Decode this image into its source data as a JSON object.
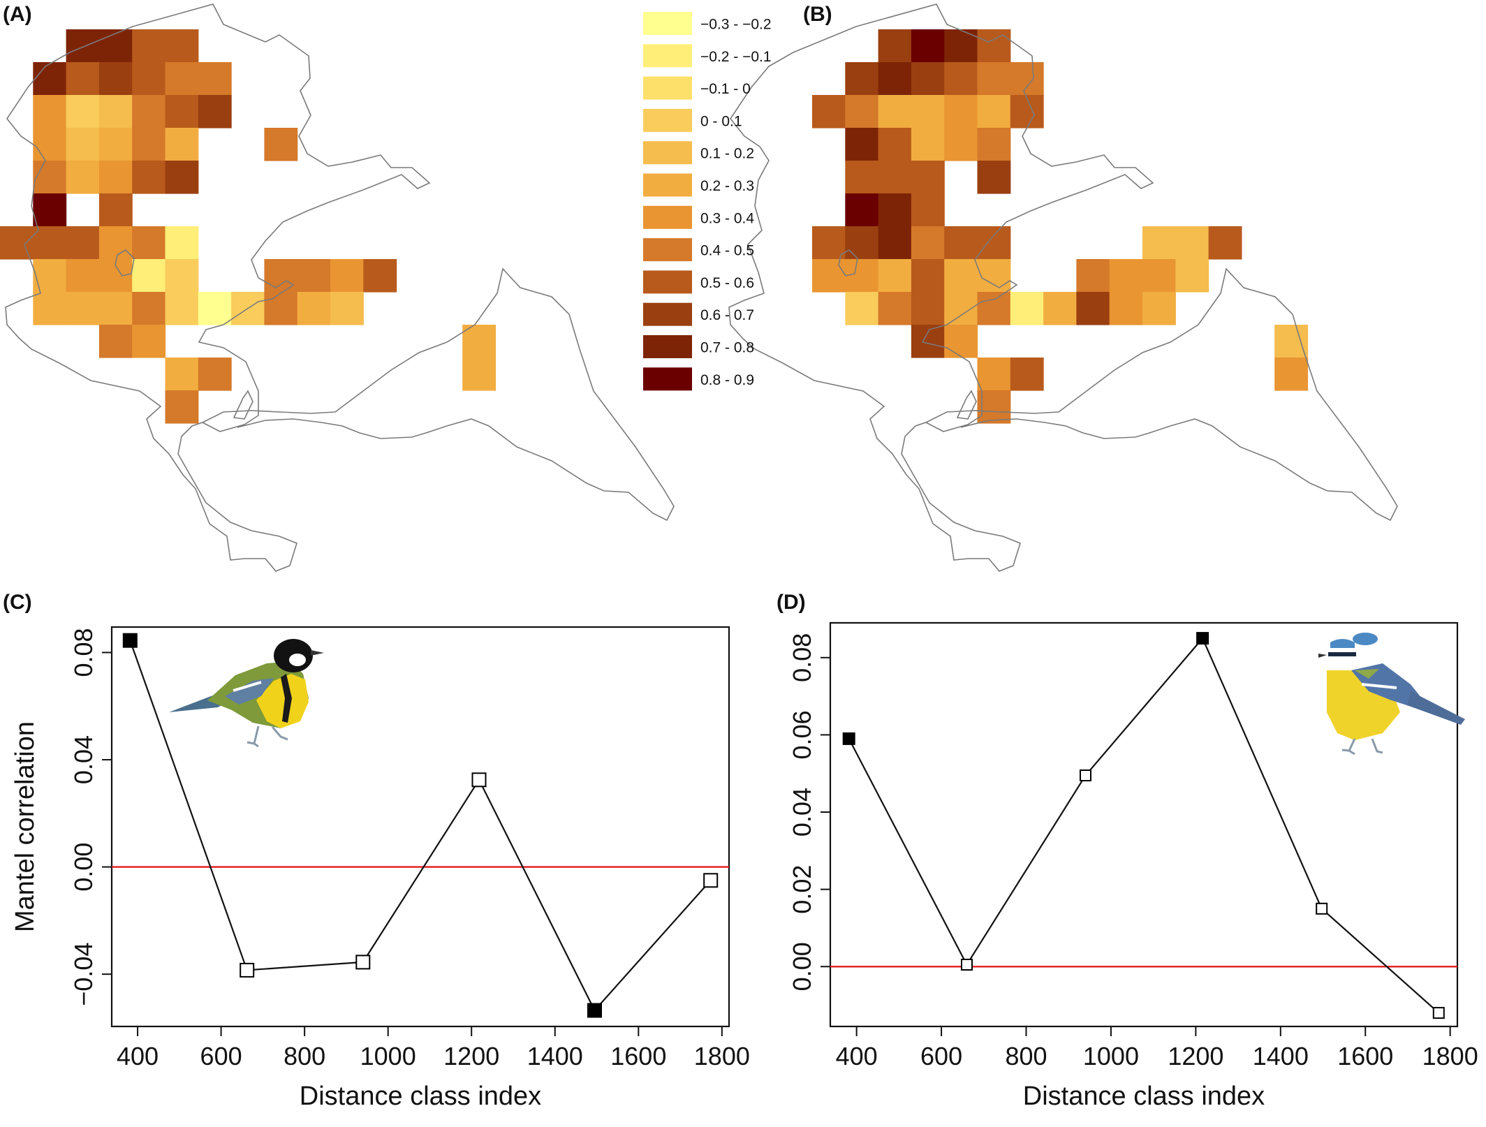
{
  "palette": [
    "#ffff8f",
    "#ffee78",
    "#fde06a",
    "#f9cc5c",
    "#f5bc4e",
    "#f2ad40",
    "#e99532",
    "#d5792a",
    "#b85a1c",
    "#9a3f10",
    "#7e2406",
    "#6b0000"
  ],
  "map_a": {
    "label": "(A)",
    "cells": [
      [
        2,
        0,
        10
      ],
      [
        3,
        0,
        10
      ],
      [
        4,
        0,
        8
      ],
      [
        5,
        0,
        8
      ],
      [
        1,
        1,
        10
      ],
      [
        2,
        1,
        8
      ],
      [
        3,
        1,
        9
      ],
      [
        4,
        1,
        8
      ],
      [
        5,
        1,
        7
      ],
      [
        6,
        1,
        7
      ],
      [
        1,
        2,
        6
      ],
      [
        2,
        2,
        3
      ],
      [
        3,
        2,
        4
      ],
      [
        4,
        2,
        7
      ],
      [
        5,
        2,
        8
      ],
      [
        6,
        2,
        9
      ],
      [
        1,
        3,
        6
      ],
      [
        2,
        3,
        4
      ],
      [
        3,
        3,
        5
      ],
      [
        4,
        3,
        7
      ],
      [
        5,
        3,
        5
      ],
      [
        8,
        3,
        7
      ],
      [
        1,
        4,
        7
      ],
      [
        2,
        4,
        5
      ],
      [
        3,
        4,
        6
      ],
      [
        4,
        4,
        8
      ],
      [
        5,
        4,
        9
      ],
      [
        1,
        5,
        11
      ],
      [
        3,
        5,
        8
      ],
      [
        0,
        6,
        8
      ],
      [
        1,
        6,
        8
      ],
      [
        2,
        6,
        8
      ],
      [
        3,
        6,
        6
      ],
      [
        4,
        6,
        7
      ],
      [
        5,
        6,
        1
      ],
      [
        1,
        7,
        5
      ],
      [
        2,
        7,
        6
      ],
      [
        3,
        7,
        6
      ],
      [
        4,
        7,
        1
      ],
      [
        5,
        7,
        3
      ],
      [
        8,
        7,
        7
      ],
      [
        9,
        7,
        7
      ],
      [
        10,
        7,
        6
      ],
      [
        11,
        7,
        8
      ],
      [
        1,
        8,
        5
      ],
      [
        2,
        8,
        5
      ],
      [
        3,
        8,
        5
      ],
      [
        4,
        8,
        7
      ],
      [
        5,
        8,
        3
      ],
      [
        6,
        8,
        0
      ],
      [
        7,
        8,
        3
      ],
      [
        8,
        8,
        7
      ],
      [
        9,
        8,
        5
      ],
      [
        10,
        8,
        4
      ],
      [
        3,
        9,
        7
      ],
      [
        4,
        9,
        6
      ],
      [
        14,
        9,
        5
      ],
      [
        5,
        10,
        5
      ],
      [
        6,
        10,
        7
      ],
      [
        14,
        10,
        5
      ],
      [
        5,
        11,
        7
      ]
    ]
  },
  "map_b": {
    "label": "(B)",
    "cells": [
      [
        2,
        0,
        9
      ],
      [
        3,
        0,
        11
      ],
      [
        4,
        0,
        10
      ],
      [
        5,
        0,
        8
      ],
      [
        1,
        1,
        9
      ],
      [
        2,
        1,
        10
      ],
      [
        3,
        1,
        9
      ],
      [
        4,
        1,
        8
      ],
      [
        5,
        1,
        7
      ],
      [
        6,
        1,
        7
      ],
      [
        0,
        2,
        8
      ],
      [
        1,
        2,
        7
      ],
      [
        2,
        2,
        5
      ],
      [
        3,
        2,
        5
      ],
      [
        4,
        2,
        6
      ],
      [
        5,
        2,
        5
      ],
      [
        6,
        2,
        8
      ],
      [
        1,
        3,
        10
      ],
      [
        2,
        3,
        8
      ],
      [
        3,
        3,
        5
      ],
      [
        4,
        3,
        6
      ],
      [
        5,
        3,
        7
      ],
      [
        1,
        4,
        8
      ],
      [
        2,
        4,
        8
      ],
      [
        3,
        4,
        8
      ],
      [
        5,
        4,
        9
      ],
      [
        1,
        5,
        11
      ],
      [
        2,
        5,
        10
      ],
      [
        3,
        5,
        8
      ],
      [
        0,
        6,
        8
      ],
      [
        1,
        6,
        9
      ],
      [
        2,
        6,
        10
      ],
      [
        3,
        6,
        7
      ],
      [
        4,
        6,
        8
      ],
      [
        5,
        6,
        8
      ],
      [
        10,
        6,
        4
      ],
      [
        11,
        6,
        4
      ],
      [
        12,
        6,
        8
      ],
      [
        0,
        7,
        6
      ],
      [
        1,
        7,
        6
      ],
      [
        2,
        7,
        5
      ],
      [
        3,
        7,
        8
      ],
      [
        4,
        7,
        5
      ],
      [
        5,
        7,
        5
      ],
      [
        8,
        7,
        7
      ],
      [
        9,
        7,
        6
      ],
      [
        10,
        7,
        6
      ],
      [
        11,
        7,
        4
      ],
      [
        1,
        8,
        3
      ],
      [
        2,
        8,
        7
      ],
      [
        3,
        8,
        8
      ],
      [
        4,
        8,
        5
      ],
      [
        5,
        8,
        7
      ],
      [
        6,
        8,
        1
      ],
      [
        7,
        8,
        5
      ],
      [
        8,
        8,
        9
      ],
      [
        9,
        8,
        6
      ],
      [
        10,
        8,
        5
      ],
      [
        3,
        9,
        9
      ],
      [
        4,
        9,
        6
      ],
      [
        14,
        9,
        4
      ],
      [
        5,
        10,
        6
      ],
      [
        6,
        10,
        8
      ],
      [
        14,
        10,
        6
      ],
      [
        5,
        11,
        7
      ]
    ]
  },
  "legend": {
    "items": [
      "−0.3 - −0.2",
      "−0.2 - −0.1",
      "−0.1 - 0",
      "0 - 0.1",
      "0.1 - 0.2",
      "0.2 - 0.3",
      "0.3 - 0.4",
      "0.4 - 0.5",
      "0.5 - 0.6",
      "0.6 - 0.7",
      "0.7 - 0.8",
      "0.8 - 0.9"
    ]
  },
  "chart_data": [
    {
      "type": "line",
      "panel": "(C)",
      "xlabel": "Distance class index",
      "ylabel": "Mantel correlation",
      "x": [
        382,
        662,
        940,
        1218,
        1495,
        1773
      ],
      "series": [
        {
          "values": [
            0.0845,
            -0.0385,
            -0.0355,
            0.0325,
            -0.0535,
            -0.005
          ]
        }
      ],
      "significant": [
        true,
        false,
        false,
        false,
        true,
        false
      ],
      "xticks": [
        400,
        600,
        800,
        1000,
        1200,
        1400,
        1600,
        1800
      ],
      "xtick_labels": [
        "400",
        "600",
        "800",
        "1000",
        "1200",
        "1400",
        "1600",
        "1800"
      ],
      "yticks": [
        -0.04,
        0.0,
        0.04,
        0.08
      ],
      "ytick_labels": [
        "−0.04",
        "0.00",
        "0.04",
        "0.08"
      ],
      "xlim": [
        338,
        1817
      ],
      "ylim": [
        -0.0595,
        0.0895
      ],
      "reference_line": {
        "y": 0,
        "color": "#e31a1c"
      },
      "grid": false
    },
    {
      "type": "line",
      "panel": "(D)",
      "xlabel": "Distance class index",
      "ylabel": "",
      "x": [
        382,
        660,
        940,
        1216,
        1497,
        1773
      ],
      "series": [
        {
          "values": [
            0.059,
            0.0005,
            0.0495,
            0.085,
            0.015,
            -0.012
          ]
        }
      ],
      "significant": [
        true,
        false,
        false,
        true,
        false,
        false
      ],
      "xticks": [
        400,
        600,
        800,
        1000,
        1200,
        1400,
        1600,
        1800
      ],
      "xtick_labels": [
        "400",
        "600",
        "800",
        "1000",
        "1200",
        "1400",
        "1600",
        "1800"
      ],
      "yticks": [
        0.0,
        0.02,
        0.04,
        0.06,
        0.08
      ],
      "ytick_labels": [
        "0.00",
        "0.02",
        "0.04",
        "0.06",
        "0.08"
      ],
      "xlim": [
        338,
        1817
      ],
      "ylim": [
        -0.0155,
        0.089
      ],
      "reference_line": {
        "y": 0,
        "color": "#e31a1c"
      },
      "grid": false
    }
  ],
  "birds": {
    "c": "great-tit-icon",
    "d": "blue-tit-icon"
  }
}
